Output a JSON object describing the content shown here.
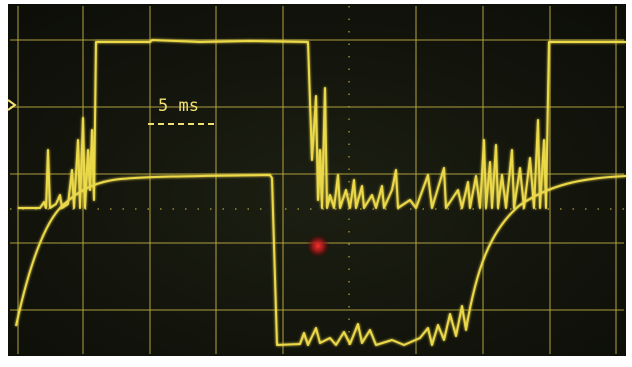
{
  "scope": {
    "timebase_label": "5 ms"
  }
}
